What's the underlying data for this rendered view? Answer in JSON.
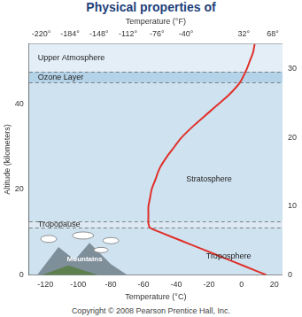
{
  "chart_data": {
    "type": "line",
    "title": "Physical properties of",
    "copyright": "Copyright © 2008 Pearson Prentice Hall, Inc.",
    "x_label": "Temperature (°C)",
    "x2_label": "Temperature (°F)",
    "y_label": "Altitude (kilometers)",
    "x": [
      15,
      2,
      -11,
      -24,
      -37,
      -50,
      -56,
      -57,
      -57,
      -57,
      -56,
      -55,
      -53,
      -50,
      -45,
      -41,
      -37,
      -29,
      -20,
      -14,
      -8,
      -1,
      3,
      5,
      7,
      8
    ],
    "values": [
      0,
      2,
      4,
      6,
      8,
      10,
      11,
      12,
      14,
      16,
      18,
      20,
      22,
      25,
      28,
      30,
      32,
      35,
      38,
      40,
      42,
      45,
      48,
      50,
      52,
      54
    ],
    "color": "#e0302a",
    "marker": "none",
    "xlim": [
      -130,
      25
    ],
    "xticks": [
      -120,
      -100,
      -80,
      -60,
      -40,
      -20,
      0,
      20
    ],
    "x2lim": [
      -235,
      80
    ],
    "x2ticks": [
      {
        "value": -220,
        "label": "-220°"
      },
      {
        "value": -184,
        "label": "-184°"
      },
      {
        "value": -148,
        "label": "-148°"
      },
      {
        "value": -112,
        "label": "-112°"
      },
      {
        "value": -76,
        "label": "-76°"
      },
      {
        "value": -40,
        "label": "-40°"
      },
      {
        "value": 32,
        "label": "32°"
      },
      {
        "value": 68,
        "label": "68°"
      }
    ],
    "ylim": [
      0,
      54
    ],
    "yticks": [
      0,
      20,
      40
    ],
    "y2lim": [
      0,
      33.6
    ],
    "y2ticks": [
      0,
      10,
      20,
      30
    ],
    "grid": false,
    "legend": "none",
    "regions": [
      {
        "label": "Upper Atmosphere",
        "from": 47.5,
        "to": 54
      },
      {
        "label": "Ozone Layer",
        "from": 45,
        "to": 47.5
      },
      {
        "label": "Stratosphere",
        "from": 12.5,
        "to": 45
      },
      {
        "label": "Tropopause",
        "from": 11,
        "to": 12.5
      },
      {
        "label": "Troposphere",
        "from": 0,
        "to": 11
      }
    ],
    "annotations": [
      "Mountains"
    ]
  }
}
